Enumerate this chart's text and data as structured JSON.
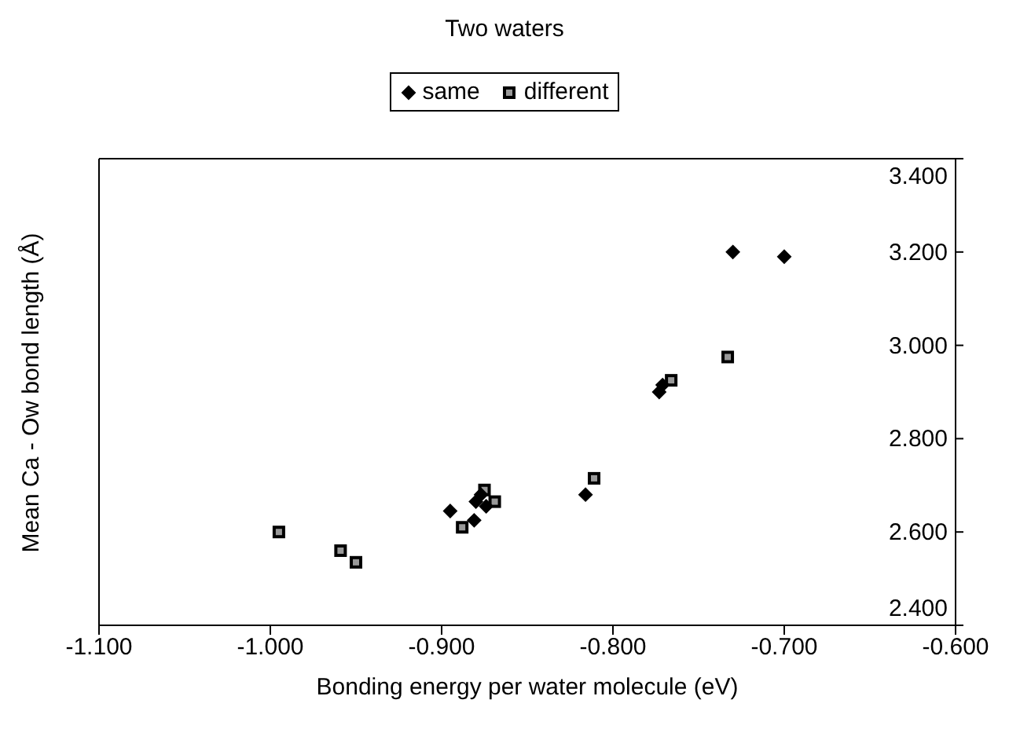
{
  "chart_data": {
    "type": "scatter",
    "title": "Two waters",
    "xlabel": "Bonding energy per water molecule (eV)",
    "ylabel": "Mean Ca - Ow bond length (Å)",
    "xlim": [
      -1.1,
      -0.6
    ],
    "xticks": [
      {
        "value": -1.1,
        "label": "-1.100"
      },
      {
        "value": -1.0,
        "label": "-1.000"
      },
      {
        "value": -0.9,
        "label": "-0.900"
      },
      {
        "value": -0.8,
        "label": "-0.800"
      },
      {
        "value": -0.7,
        "label": "-0.700"
      },
      {
        "value": -0.6,
        "label": "-0.600"
      }
    ],
    "ylim": [
      2.4,
      3.4
    ],
    "yticks": [
      {
        "value": 2.4,
        "label": "2.400"
      },
      {
        "value": 2.6,
        "label": "2.600"
      },
      {
        "value": 2.8,
        "label": "2.800"
      },
      {
        "value": 3.0,
        "label": "3.000"
      },
      {
        "value": 3.2,
        "label": "3.200"
      },
      {
        "value": 3.4,
        "label": "3.400"
      }
    ],
    "grid": false,
    "legend": "top",
    "series": [
      {
        "name": "same",
        "color": "#000000",
        "marker": "diamond",
        "x": [
          -0.73,
          -0.7,
          -0.773,
          -0.771,
          -0.816,
          -0.895,
          -0.881,
          -0.88,
          -0.877,
          -0.874
        ],
        "values": [
          3.2,
          3.19,
          2.9,
          2.915,
          2.68,
          2.645,
          2.625,
          2.665,
          2.68,
          2.655
        ]
      },
      {
        "name": "different",
        "color": "#999999",
        "marker": "square",
        "x": [
          -0.733,
          -0.766,
          -0.811,
          -0.875,
          -0.869,
          -0.888,
          -0.995,
          -0.959,
          -0.95
        ],
        "values": [
          2.975,
          2.925,
          2.715,
          2.69,
          2.665,
          2.61,
          2.6,
          2.56,
          2.535
        ]
      }
    ]
  }
}
